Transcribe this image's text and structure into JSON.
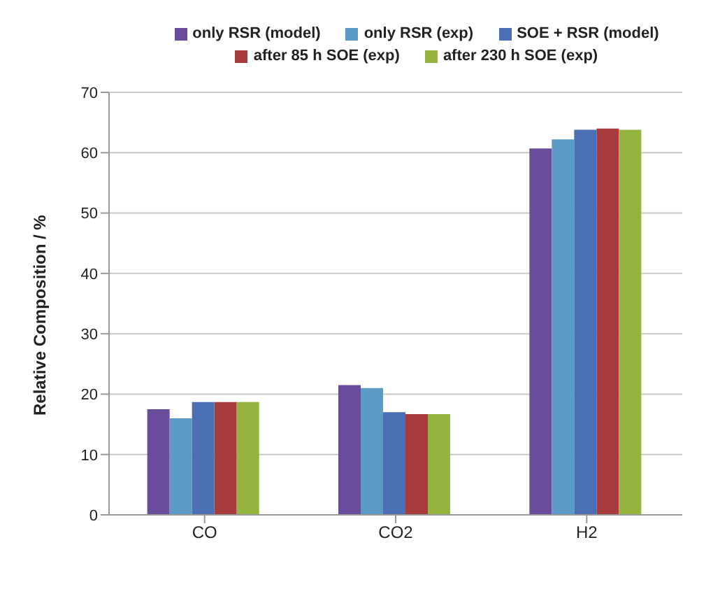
{
  "chart_data": {
    "type": "bar",
    "ylabel": "Relative Composition / %",
    "categories": [
      "CO",
      "CO2",
      "H2"
    ],
    "series": [
      {
        "name": "only RSR (model)",
        "color": "#6a4c9c",
        "values": [
          17.5,
          21.5,
          60.7
        ]
      },
      {
        "name": "only RSR (exp)",
        "color": "#5b9bc5",
        "values": [
          16,
          21,
          62.2
        ]
      },
      {
        "name": "SOE + RSR (model)",
        "color": "#4a6fb5",
        "values": [
          18.7,
          17,
          63.8
        ]
      },
      {
        "name": "after 85 h SOE (exp)",
        "color": "#a83c3c",
        "values": [
          18.7,
          16.7,
          64
        ]
      },
      {
        "name": "after 230 h SOE (exp)",
        "color": "#95b33f",
        "values": [
          18.7,
          16.7,
          63.8
        ]
      }
    ],
    "ylim": [
      0,
      70
    ],
    "yticks": [
      0,
      10,
      20,
      30,
      40,
      50,
      60,
      70
    ],
    "grid": "y",
    "legend": "top"
  }
}
